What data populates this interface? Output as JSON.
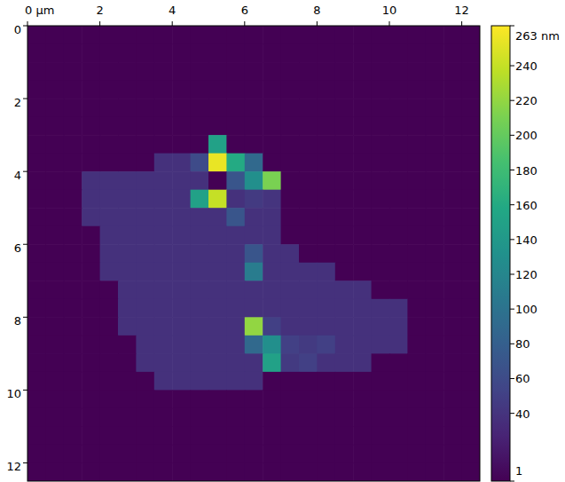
{
  "chart_data": {
    "type": "heatmap",
    "xlim": [
      0,
      12.5
    ],
    "ylim": [
      0,
      12.5
    ],
    "xticks": [
      {
        "value": 0,
        "label": "0 µm"
      },
      2,
      4,
      6,
      8,
      10,
      12
    ],
    "yticks": [
      0,
      2,
      4,
      6,
      8,
      10,
      12
    ],
    "color_range": [
      1,
      263
    ],
    "color_ticks": [
      1,
      40,
      60,
      80,
      100,
      120,
      140,
      160,
      180,
      200,
      220,
      240,
      {
        "value": 263,
        "label": "263 nm"
      }
    ],
    "cells": [
      [
        1,
        1,
        1,
        1,
        1,
        1,
        1,
        1,
        1,
        1,
        1,
        1,
        1,
        1,
        1,
        1,
        1,
        1,
        1,
        1,
        1,
        1,
        1,
        1,
        1
      ],
      [
        1,
        1,
        1,
        1,
        1,
        1,
        1,
        1,
        1,
        1,
        1,
        1,
        1,
        1,
        1,
        1,
        1,
        1,
        1,
        1,
        1,
        1,
        1,
        1,
        1
      ],
      [
        1,
        1,
        1,
        1,
        1,
        1,
        1,
        1,
        1,
        1,
        1,
        1,
        1,
        1,
        1,
        1,
        1,
        1,
        1,
        1,
        1,
        1,
        1,
        1,
        1
      ],
      [
        1,
        1,
        1,
        1,
        1,
        1,
        1,
        1,
        1,
        1,
        1,
        1,
        1,
        1,
        1,
        1,
        1,
        1,
        1,
        1,
        1,
        1,
        1,
        1,
        1
      ],
      [
        1,
        1,
        1,
        1,
        1,
        1,
        1,
        1,
        1,
        1,
        1,
        1,
        1,
        1,
        1,
        1,
        1,
        1,
        1,
        1,
        1,
        1,
        1,
        1,
        1
      ],
      [
        1,
        1,
        1,
        1,
        1,
        1,
        1,
        1,
        1,
        1,
        1,
        1,
        1,
        1,
        1,
        1,
        1,
        1,
        1,
        1,
        1,
        1,
        1,
        1,
        1
      ],
      [
        1,
        1,
        1,
        1,
        1,
        1,
        1,
        1,
        1,
        1,
        150,
        1,
        1,
        1,
        1,
        1,
        1,
        1,
        1,
        1,
        1,
        1,
        1,
        1,
        1
      ],
      [
        1,
        1,
        1,
        1,
        1,
        1,
        1,
        38,
        38,
        60,
        255,
        160,
        90,
        1,
        1,
        1,
        1,
        1,
        1,
        1,
        1,
        1,
        1,
        1,
        1
      ],
      [
        1,
        1,
        1,
        38,
        38,
        38,
        38,
        38,
        38,
        38,
        1,
        70,
        130,
        210,
        1,
        1,
        1,
        1,
        1,
        1,
        1,
        1,
        1,
        1,
        1
      ],
      [
        1,
        1,
        1,
        38,
        38,
        38,
        38,
        38,
        38,
        150,
        240,
        38,
        45,
        40,
        1,
        1,
        1,
        1,
        1,
        1,
        1,
        1,
        1,
        1,
        1
      ],
      [
        1,
        1,
        1,
        38,
        38,
        38,
        38,
        38,
        38,
        38,
        38,
        70,
        38,
        38,
        1,
        1,
        1,
        1,
        1,
        1,
        1,
        1,
        1,
        1,
        1
      ],
      [
        1,
        1,
        1,
        1,
        38,
        38,
        38,
        38,
        38,
        38,
        38,
        38,
        38,
        38,
        1,
        1,
        1,
        1,
        1,
        1,
        1,
        1,
        1,
        1,
        1
      ],
      [
        1,
        1,
        1,
        1,
        38,
        38,
        38,
        38,
        38,
        38,
        38,
        38,
        70,
        38,
        38,
        1,
        1,
        1,
        1,
        1,
        1,
        1,
        1,
        1,
        1
      ],
      [
        1,
        1,
        1,
        1,
        38,
        38,
        38,
        38,
        38,
        38,
        38,
        38,
        110,
        38,
        38,
        38,
        38,
        1,
        1,
        1,
        1,
        1,
        1,
        1,
        1
      ],
      [
        1,
        1,
        1,
        1,
        1,
        38,
        38,
        38,
        38,
        38,
        38,
        38,
        38,
        38,
        38,
        38,
        38,
        38,
        38,
        1,
        1,
        1,
        1,
        1,
        1
      ],
      [
        1,
        1,
        1,
        1,
        1,
        38,
        38,
        38,
        38,
        38,
        38,
        38,
        38,
        38,
        38,
        38,
        38,
        38,
        38,
        38,
        38,
        1,
        1,
        1,
        1
      ],
      [
        1,
        1,
        1,
        1,
        1,
        38,
        38,
        38,
        38,
        38,
        38,
        38,
        220,
        50,
        38,
        38,
        38,
        38,
        38,
        38,
        38,
        1,
        1,
        1,
        1
      ],
      [
        1,
        1,
        1,
        1,
        1,
        1,
        38,
        38,
        38,
        38,
        38,
        38,
        90,
        130,
        50,
        45,
        50,
        38,
        38,
        38,
        38,
        1,
        1,
        1,
        1
      ],
      [
        1,
        1,
        1,
        1,
        1,
        1,
        38,
        38,
        38,
        38,
        38,
        38,
        38,
        150,
        45,
        50,
        38,
        38,
        38,
        1,
        1,
        1,
        1,
        1,
        1
      ],
      [
        1,
        1,
        1,
        1,
        1,
        1,
        1,
        38,
        38,
        38,
        38,
        38,
        38,
        1,
        1,
        1,
        1,
        1,
        1,
        1,
        1,
        1,
        1,
        1,
        1
      ],
      [
        1,
        1,
        1,
        1,
        1,
        1,
        1,
        1,
        1,
        1,
        1,
        1,
        1,
        1,
        1,
        1,
        1,
        1,
        1,
        1,
        1,
        1,
        1,
        1,
        1
      ],
      [
        1,
        1,
        1,
        1,
        1,
        1,
        1,
        1,
        1,
        1,
        1,
        1,
        1,
        1,
        1,
        1,
        1,
        1,
        1,
        1,
        1,
        1,
        1,
        1,
        1
      ],
      [
        1,
        1,
        1,
        1,
        1,
        1,
        1,
        1,
        1,
        1,
        1,
        1,
        1,
        1,
        1,
        1,
        1,
        1,
        1,
        1,
        1,
        1,
        1,
        1,
        1
      ],
      [
        1,
        1,
        1,
        1,
        1,
        1,
        1,
        1,
        1,
        1,
        1,
        1,
        1,
        1,
        1,
        1,
        1,
        1,
        1,
        1,
        1,
        1,
        1,
        1,
        1
      ],
      [
        1,
        1,
        1,
        1,
        1,
        1,
        1,
        1,
        1,
        1,
        1,
        1,
        1,
        1,
        1,
        1,
        1,
        1,
        1,
        1,
        1,
        1,
        1,
        1,
        1
      ]
    ]
  }
}
